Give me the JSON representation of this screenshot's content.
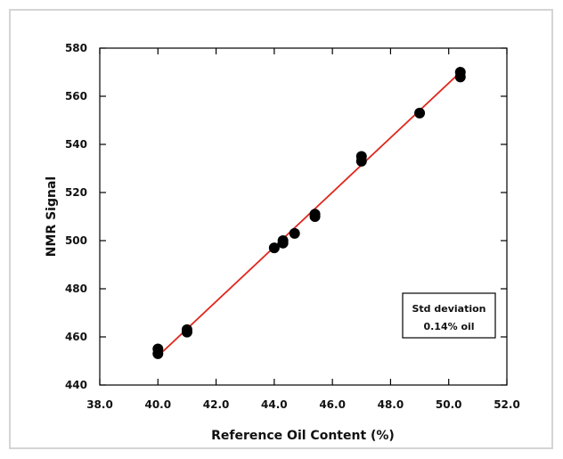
{
  "chart_data": {
    "type": "scatter",
    "xlabel": "Reference Oil Content (%)",
    "ylabel": "NMR Signal",
    "xlim": [
      38.0,
      52.0
    ],
    "ylim": [
      440,
      580
    ],
    "x_ticks": [
      "38.0",
      "40.0",
      "42.0",
      "44.0",
      "46.0",
      "48.0",
      "50.0",
      "52.0"
    ],
    "y_ticks": [
      "440",
      "460",
      "480",
      "500",
      "520",
      "540",
      "560",
      "580"
    ],
    "grid": false,
    "series": [
      {
        "points": [
          {
            "x": 40.0,
            "y": 455
          },
          {
            "x": 40.0,
            "y": 453
          },
          {
            "x": 41.0,
            "y": 463
          },
          {
            "x": 41.0,
            "y": 462
          },
          {
            "x": 44.0,
            "y": 497
          },
          {
            "x": 44.3,
            "y": 499
          },
          {
            "x": 44.3,
            "y": 500
          },
          {
            "x": 44.7,
            "y": 503
          },
          {
            "x": 45.4,
            "y": 510
          },
          {
            "x": 45.4,
            "y": 511
          },
          {
            "x": 47.0,
            "y": 535
          },
          {
            "x": 47.0,
            "y": 533
          },
          {
            "x": 49.0,
            "y": 553
          },
          {
            "x": 50.4,
            "y": 570
          },
          {
            "x": 50.4,
            "y": 568
          }
        ],
        "color": "#000000"
      }
    ],
    "fit_line": {
      "x": [
        40.0,
        50.4
      ],
      "y": [
        452,
        570
      ],
      "color": "#e0281e"
    },
    "annotation": {
      "line1": "Std deviation",
      "line2": "0.14% oil"
    }
  }
}
